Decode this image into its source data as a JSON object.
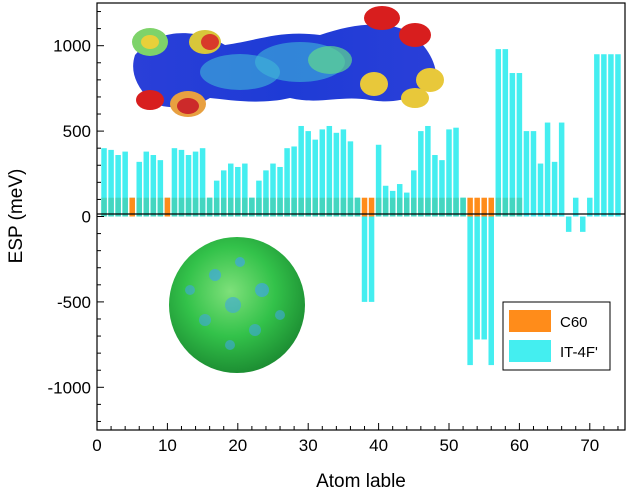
{
  "chart_data": {
    "type": "bar",
    "xlabel": "Atom lable",
    "ylabel": "ESP (meV)",
    "xlim": [
      0,
      75
    ],
    "ylim": [
      -1250,
      1250
    ],
    "x_ticks": [
      0,
      10,
      20,
      30,
      40,
      50,
      60,
      70
    ],
    "y_ticks": [
      -1000,
      -500,
      0,
      500,
      1000
    ],
    "grid": false,
    "legend_position": "lower-right",
    "series": [
      {
        "name": "C60",
        "color": "#ff8c1a",
        "x": [
          5,
          10,
          38,
          39,
          53,
          54,
          55,
          56
        ],
        "values": [
          110,
          110,
          110,
          110,
          110,
          110,
          110,
          110
        ]
      },
      {
        "name": "IT-4F'",
        "color": "#44eef0",
        "x": [
          1,
          2,
          3,
          4,
          5,
          6,
          7,
          8,
          9,
          10,
          11,
          12,
          13,
          14,
          15,
          16,
          17,
          18,
          19,
          20,
          21,
          22,
          23,
          24,
          25,
          26,
          27,
          28,
          29,
          30,
          31,
          32,
          33,
          34,
          35,
          36,
          37,
          38,
          39,
          40,
          41,
          42,
          43,
          44,
          45,
          46,
          47,
          48,
          49,
          50,
          51,
          52,
          53,
          54,
          55,
          56,
          57,
          58,
          59,
          60,
          61,
          62,
          63,
          64,
          65,
          66,
          67,
          68,
          69,
          70,
          71,
          72,
          73,
          74
        ],
        "values": [
          400,
          390,
          360,
          380,
          110,
          320,
          380,
          360,
          330,
          110,
          400,
          390,
          360,
          380,
          400,
          110,
          210,
          270,
          310,
          290,
          310,
          110,
          210,
          270,
          310,
          290,
          400,
          410,
          530,
          500,
          450,
          510,
          530,
          490,
          510,
          440,
          110,
          -500,
          -500,
          420,
          180,
          150,
          190,
          140,
          270,
          500,
          530,
          360,
          330,
          510,
          520,
          110,
          -870,
          -720,
          -720,
          -870,
          980,
          980,
          840,
          840,
          500,
          500,
          310,
          550,
          320,
          550,
          -90,
          110,
          -90,
          110,
          950,
          950,
          950,
          950
        ]
      }
    ],
    "series_overlap": {
      "color": "#44d6c0",
      "x": [
        1,
        2,
        3,
        4,
        6,
        7,
        8,
        9,
        11,
        12,
        13,
        14,
        15,
        16,
        17,
        18,
        19,
        20,
        21,
        22,
        23,
        24,
        25,
        26,
        27,
        28,
        29,
        30,
        31,
        32,
        33,
        34,
        35,
        36,
        37,
        40,
        41,
        42,
        43,
        44,
        45,
        46,
        47,
        48,
        49,
        50,
        51,
        52,
        57,
        58,
        59,
        60
      ],
      "values": [
        110,
        110,
        110,
        110,
        110,
        110,
        110,
        110,
        110,
        110,
        110,
        110,
        110,
        110,
        110,
        110,
        110,
        110,
        110,
        110,
        110,
        110,
        110,
        110,
        110,
        110,
        110,
        110,
        110,
        110,
        110,
        110,
        110,
        110,
        110,
        110,
        110,
        110,
        110,
        110,
        110,
        110,
        110,
        110,
        110,
        110,
        110,
        110,
        110,
        110,
        110,
        110
      ]
    }
  }
}
